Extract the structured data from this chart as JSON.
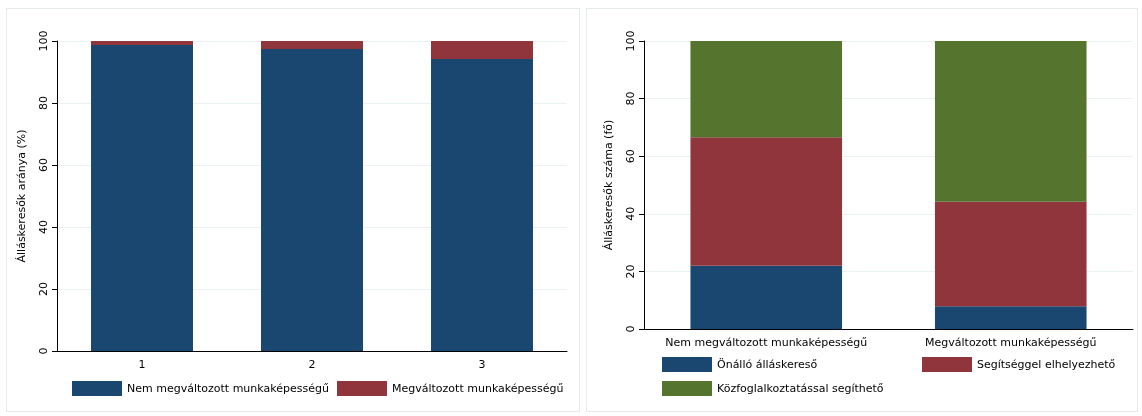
{
  "chart_data": [
    {
      "type": "bar",
      "stacked": true,
      "ylabel": "Álláskeresők aránya (%)",
      "categories": [
        "1",
        "2",
        "3"
      ],
      "series": [
        {
          "name": "Nem megváltozott munkaképességű",
          "color": "#1a476f",
          "values": [
            98.7,
            97.4,
            94.2
          ]
        },
        {
          "name": "Megváltozott munkaképességű",
          "color": "#90353b",
          "values": [
            1.3,
            2.6,
            5.8
          ]
        }
      ],
      "ylim": [
        0,
        100
      ],
      "yticks": [
        0,
        20,
        40,
        60,
        80,
        100
      ],
      "grid": "y",
      "legend": "bottom"
    },
    {
      "type": "bar",
      "stacked": true,
      "ylabel": "Álláskeresők száma (fő)",
      "categories": [
        "Nem megváltozott munkaképességű",
        "Megváltozott munkaképességű"
      ],
      "series": [
        {
          "name": "Önálló álláskereső",
          "color": "#1a476f",
          "values": [
            22.0,
            7.9
          ]
        },
        {
          "name": "Segítséggel elhelyezhető",
          "color": "#90353b",
          "values": [
            44.6,
            36.3
          ]
        },
        {
          "name": "Közfoglalkoztatással segíthető",
          "color": "#55752f",
          "values": [
            33.4,
            55.8
          ]
        }
      ],
      "ylim": [
        0,
        100
      ],
      "yticks": [
        0,
        20,
        40,
        60,
        80,
        100
      ],
      "grid": "y",
      "legend": "bottom"
    }
  ]
}
